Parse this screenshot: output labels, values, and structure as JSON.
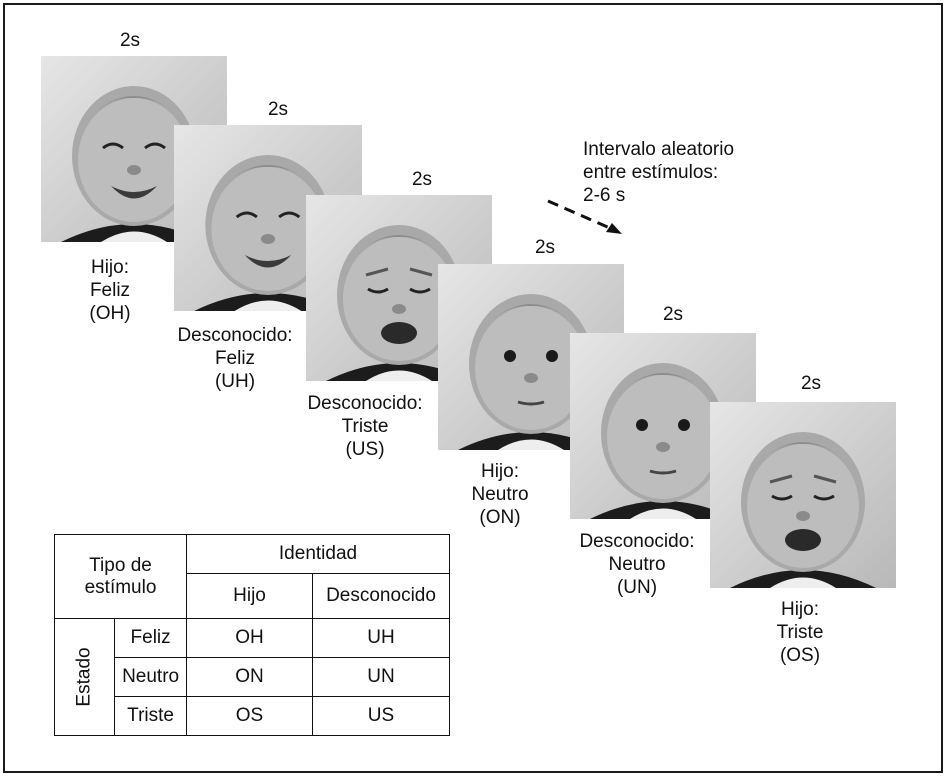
{
  "duration_label": "2s",
  "interval": {
    "line1": "Intervalo aleatorio",
    "line2": "entre estímulos:",
    "line3": "2-6 s"
  },
  "stimuli": [
    {
      "duration": "2s",
      "identity": "Hijo:",
      "state": "Feliz",
      "code": "(OH)",
      "expression": "happy"
    },
    {
      "duration": "2s",
      "identity": "Desconocido:",
      "state": "Feliz",
      "code": "(UH)",
      "expression": "happy"
    },
    {
      "duration": "2s",
      "identity": "Desconocido:",
      "state": "Triste",
      "code": "(US)",
      "expression": "sad"
    },
    {
      "duration": "2s",
      "identity": "Hijo:",
      "state": "Neutro",
      "code": "(ON)",
      "expression": "neutral"
    },
    {
      "duration": "2s",
      "identity": "Desconocido:",
      "state": "Neutro",
      "code": "(UN)",
      "expression": "neutral"
    },
    {
      "duration": "2s",
      "identity": "Hijo:",
      "state": "Triste",
      "code": "(OS)",
      "expression": "sad"
    }
  ],
  "legend": {
    "header_left": "Tipo de estímulo",
    "header_left_line1": "Tipo de",
    "header_left_line2": "estímulo",
    "identity_header": "Identidad",
    "col_own": "Hijo",
    "col_unknown": "Desconocido",
    "row_group": "Estado",
    "rows": [
      {
        "state": "Feliz",
        "own": "OH",
        "unknown": "UH"
      },
      {
        "state": "Neutro",
        "own": "ON",
        "unknown": "UN"
      },
      {
        "state": "Triste",
        "own": "OS",
        "unknown": "US"
      }
    ]
  }
}
